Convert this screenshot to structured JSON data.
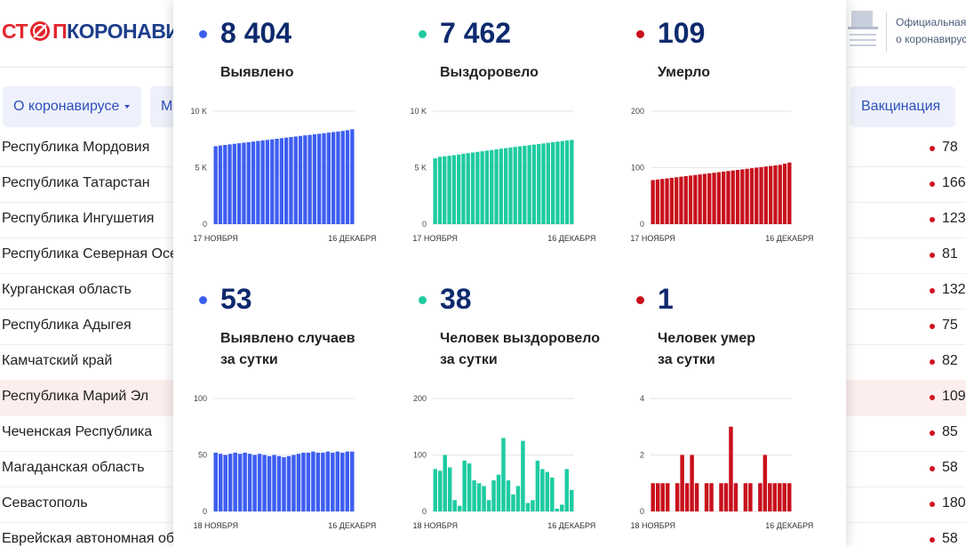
{
  "header": {
    "logo": [
      "СТ",
      "П",
      "КОРОНАВИРУС"
    ],
    "official": [
      "Официальная",
      "о коронавирусе"
    ]
  },
  "nav": [
    "О коронавирусе",
    "М",
    "Вакцинация"
  ],
  "table": {
    "rows": [
      [
        "Республика Мордовия",
        "78"
      ],
      [
        "Республика Татарстан",
        "166"
      ],
      [
        "Республика Ингушетия",
        "123"
      ],
      [
        "Республика Северная Осетия — Алания",
        "81"
      ],
      [
        "Курганская область",
        "132"
      ],
      [
        "Республика Адыгея",
        "75"
      ],
      [
        "Камчатский край",
        "82"
      ],
      [
        "Республика Марий Эл",
        "109"
      ],
      [
        "Чеченская Республика",
        "85"
      ],
      [
        "Магаданская область",
        "58"
      ],
      [
        "Севастополь",
        "180"
      ],
      [
        "Еврейская автономная область",
        "58"
      ]
    ]
  },
  "cards": [
    {
      "value": "8 404",
      "label": [
        "Выявлено"
      ]
    },
    {
      "value": "7 462",
      "label": [
        "Выздоровело"
      ]
    },
    {
      "value": "109",
      "label": [
        "Умерло"
      ]
    },
    {
      "value": "53",
      "label": [
        "Выявлено случаев",
        "за сутки"
      ]
    },
    {
      "value": "38",
      "label": [
        "Человек выздоровело",
        "за сутки"
      ]
    },
    {
      "value": "1",
      "label": [
        "Человек умер",
        "за сутки"
      ]
    }
  ],
  "chart_data": [
    {
      "type": "bar",
      "color": "#3d5ef0",
      "grid": true,
      "ylim": [
        0,
        10000
      ],
      "yticks": [
        0,
        {
          "value": 5000,
          "label": "5 K"
        },
        {
          "value": 10000,
          "label": "10 K"
        }
      ],
      "categories": [
        "17 НОЯБРЯ",
        null,
        null,
        null,
        null,
        null,
        null,
        null,
        null,
        null,
        null,
        null,
        null,
        null,
        null,
        null,
        null,
        null,
        null,
        null,
        null,
        null,
        null,
        null,
        null,
        null,
        null,
        null,
        null,
        "16 ДЕКАБРЯ"
      ],
      "values": [
        6900,
        6960,
        7010,
        7060,
        7110,
        7160,
        7210,
        7260,
        7310,
        7360,
        7410,
        7460,
        7510,
        7560,
        7610,
        7660,
        7710,
        7760,
        7810,
        7860,
        7900,
        7950,
        8000,
        8050,
        8100,
        8150,
        8200,
        8250,
        8320,
        8404
      ]
    },
    {
      "type": "bar",
      "color": "#1ecba1",
      "grid": true,
      "ylim": [
        0,
        10000
      ],
      "yticks": [
        0,
        {
          "value": 5000,
          "label": "5 K"
        },
        {
          "value": 10000,
          "label": "10 K"
        }
      ],
      "categories": [
        "17 НОЯБРЯ",
        null,
        null,
        null,
        null,
        null,
        null,
        null,
        null,
        null,
        null,
        null,
        null,
        null,
        null,
        null,
        null,
        null,
        null,
        null,
        null,
        null,
        null,
        null,
        null,
        null,
        null,
        null,
        null,
        "16 ДЕКАБРЯ"
      ],
      "values": [
        5830,
        5960,
        6010,
        6050,
        6100,
        6160,
        6230,
        6290,
        6340,
        6400,
        6450,
        6510,
        6560,
        6620,
        6680,
        6730,
        6790,
        6840,
        6890,
        6940,
        6990,
        7040,
        7090,
        7140,
        7200,
        7260,
        7310,
        7360,
        7410,
        7462
      ]
    },
    {
      "type": "bar",
      "color": "#c8101c",
      "grid": true,
      "ylim": [
        0,
        200
      ],
      "yticks": [
        0,
        100,
        200
      ],
      "categories": [
        "17 НОЯБРЯ",
        null,
        null,
        null,
        null,
        null,
        null,
        null,
        null,
        null,
        null,
        null,
        null,
        null,
        null,
        null,
        null,
        null,
        null,
        null,
        null,
        null,
        null,
        null,
        null,
        null,
        null,
        null,
        null,
        "16 ДЕКАБРЯ"
      ],
      "values": [
        78,
        79,
        80,
        81,
        82,
        83,
        84,
        85,
        86,
        87,
        88,
        89,
        90,
        91,
        92,
        93,
        94,
        95,
        96,
        97,
        98,
        99,
        100,
        101,
        102,
        103,
        104,
        105,
        107,
        109
      ]
    },
    {
      "type": "bar",
      "color": "#3d5ef0",
      "grid": true,
      "ylim": [
        0,
        100
      ],
      "yticks": [
        0,
        50,
        100
      ],
      "categories": [
        "18 НОЯБРЯ",
        null,
        null,
        null,
        null,
        null,
        null,
        null,
        null,
        null,
        null,
        null,
        null,
        null,
        null,
        null,
        null,
        null,
        null,
        null,
        null,
        null,
        null,
        null,
        null,
        null,
        null,
        null,
        "16 ДЕКАБРЯ"
      ],
      "values": [
        52,
        51,
        50,
        51,
        52,
        51,
        52,
        51,
        50,
        51,
        50,
        49,
        50,
        49,
        48,
        49,
        50,
        51,
        52,
        52,
        53,
        52,
        52,
        53,
        52,
        53,
        52,
        53,
        53
      ]
    },
    {
      "type": "bar",
      "color": "#1ecba1",
      "grid": true,
      "ylim": [
        0,
        200
      ],
      "yticks": [
        0,
        100,
        200
      ],
      "categories": [
        "18 НОЯБРЯ",
        null,
        null,
        null,
        null,
        null,
        null,
        null,
        null,
        null,
        null,
        null,
        null,
        null,
        null,
        null,
        null,
        null,
        null,
        null,
        null,
        null,
        null,
        null,
        null,
        null,
        null,
        null,
        "16 ДЕКАБРЯ"
      ],
      "values": [
        75,
        72,
        100,
        78,
        20,
        10,
        90,
        85,
        55,
        50,
        45,
        20,
        55,
        65,
        130,
        55,
        30,
        45,
        125,
        15,
        20,
        90,
        75,
        70,
        60,
        5,
        12,
        75,
        38
      ]
    },
    {
      "type": "bar",
      "color": "#c8101c",
      "grid": true,
      "ylim": [
        0,
        4
      ],
      "yticks": [
        0,
        2,
        4
      ],
      "categories": [
        "18 НОЯБРЯ",
        null,
        null,
        null,
        null,
        null,
        null,
        null,
        null,
        null,
        null,
        null,
        null,
        null,
        null,
        null,
        null,
        null,
        null,
        null,
        null,
        null,
        null,
        null,
        null,
        null,
        null,
        null,
        "16 ДЕКАБРЯ"
      ],
      "values": [
        1,
        1,
        1,
        1,
        0,
        1,
        2,
        1,
        2,
        1,
        0,
        1,
        1,
        0,
        1,
        1,
        3,
        1,
        0,
        1,
        1,
        0,
        1,
        2,
        1,
        1,
        1,
        1,
        1
      ]
    }
  ]
}
